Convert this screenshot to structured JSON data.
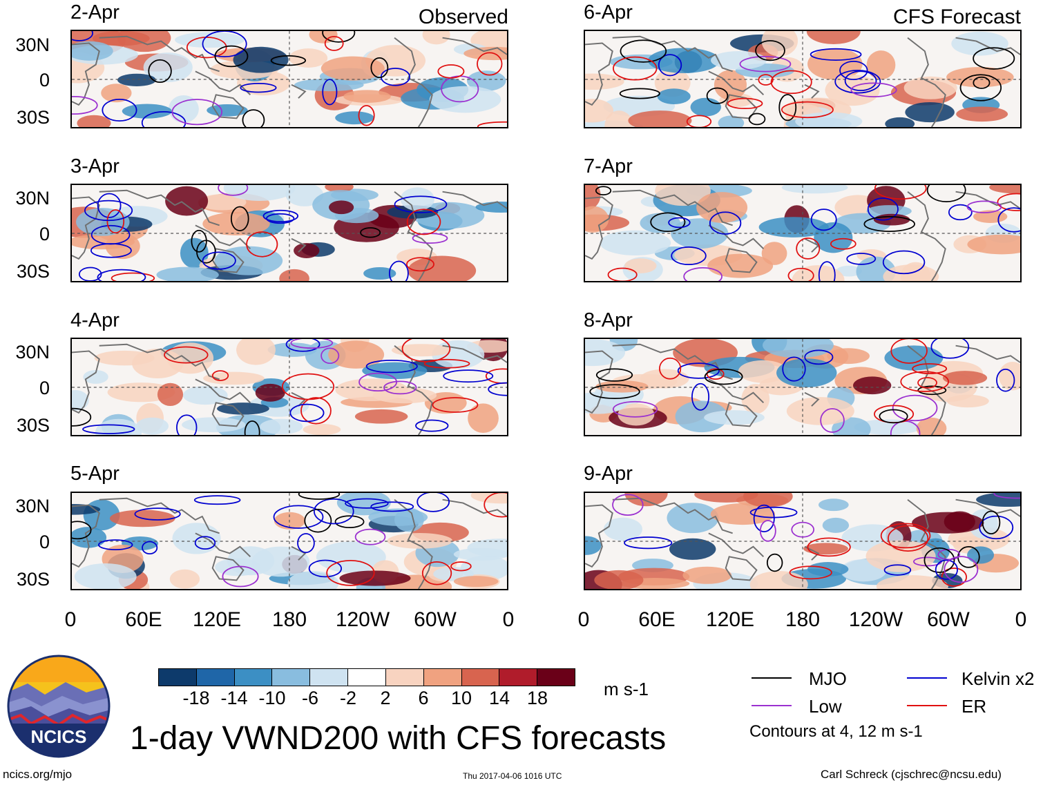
{
  "observed_title": "Observed",
  "forecast_title": "CFS Forecast",
  "panels": [
    {
      "date": "2-Apr",
      "column": "observed"
    },
    {
      "date": "3-Apr",
      "column": "observed"
    },
    {
      "date": "4-Apr",
      "column": "observed"
    },
    {
      "date": "5-Apr",
      "column": "observed"
    },
    {
      "date": "6-Apr",
      "column": "forecast"
    },
    {
      "date": "7-Apr",
      "column": "forecast"
    },
    {
      "date": "8-Apr",
      "column": "forecast"
    },
    {
      "date": "9-Apr",
      "column": "forecast"
    }
  ],
  "lat_labels": [
    "30N",
    "0",
    "30S"
  ],
  "lon_labels": [
    "0",
    "60E",
    "120E",
    "180",
    "120W",
    "60W",
    "0"
  ],
  "colorbar": {
    "ticks": [
      "-18",
      "-14",
      "-10",
      "-6",
      "-2",
      "2",
      "6",
      "10",
      "14",
      "18"
    ],
    "colors": [
      "#0d3a6b",
      "#1f66a8",
      "#3c8fc4",
      "#89bddf",
      "#cfe3f1",
      "#ffffff",
      "#f8d3c0",
      "#f0a280",
      "#d8644f",
      "#b01c2b",
      "#6a0018"
    ],
    "units": "m s-1"
  },
  "legend": {
    "mjo": {
      "label": "MJO",
      "color": "#000000"
    },
    "kelvin": {
      "label": "Kelvin x2",
      "color": "#0000d0"
    },
    "low": {
      "label": "Low",
      "color": "#9b30d0"
    },
    "er": {
      "label": "ER",
      "color": "#e01010"
    },
    "contours_note": "Contours at 4, 12 m s-1"
  },
  "title": "1-day VWND200 with CFS forecasts",
  "logo_text": "NCICS",
  "footer": {
    "url": "ncics.org/mjo",
    "timestamp": "Thu 2017-04-06 1016 UTC",
    "author": "Carl Schreck (cjschrec@ncsu.edu)"
  }
}
